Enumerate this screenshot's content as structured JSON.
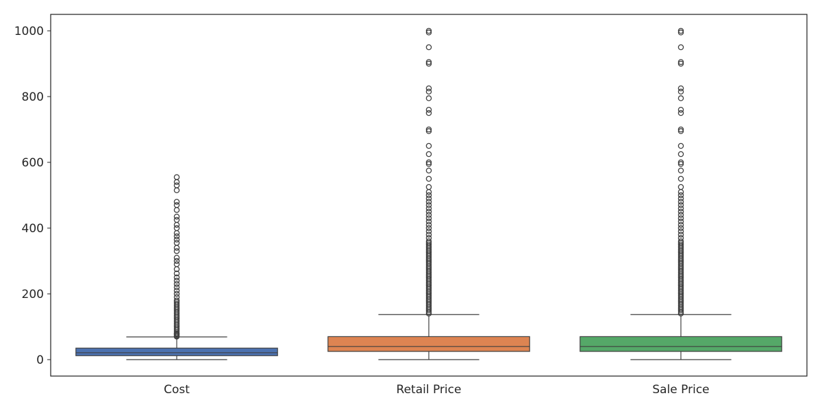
{
  "chart_data": {
    "type": "box",
    "title": "",
    "xlabel": "",
    "ylabel": "",
    "ylim": [
      -50,
      1050
    ],
    "y_ticks": [
      0,
      200,
      400,
      600,
      800,
      1000
    ],
    "y_tick_labels": [
      "0",
      "200",
      "400",
      "600",
      "800",
      "1000"
    ],
    "grid": false,
    "categories": [
      "Cost",
      "Retail Price",
      "Sale Price"
    ],
    "boxes": [
      {
        "category": "Cost",
        "color": "#4c72b0",
        "whisker_low": 0,
        "q1": 12,
        "median": 21,
        "q3": 35,
        "whisker_high": 69,
        "outliers": [
          70,
          72,
          75,
          78,
          80,
          85,
          90,
          95,
          100,
          105,
          110,
          115,
          120,
          125,
          130,
          135,
          140,
          145,
          150,
          155,
          160,
          165,
          170,
          175,
          180,
          190,
          200,
          210,
          220,
          230,
          240,
          250,
          262,
          275,
          290,
          300,
          310,
          330,
          340,
          355,
          365,
          375,
          385,
          400,
          410,
          425,
          435,
          455,
          470,
          480,
          515,
          530,
          540,
          555
        ]
      },
      {
        "category": "Retail Price",
        "color": "#dd8452",
        "whisker_low": 0,
        "q1": 25,
        "median": 40,
        "q3": 70,
        "whisker_high": 137,
        "outliers": [
          140,
          145,
          150,
          155,
          160,
          165,
          170,
          175,
          180,
          185,
          190,
          195,
          200,
          205,
          210,
          215,
          220,
          225,
          230,
          235,
          240,
          245,
          250,
          255,
          260,
          265,
          270,
          275,
          280,
          285,
          290,
          295,
          300,
          305,
          310,
          315,
          320,
          325,
          330,
          335,
          340,
          345,
          350,
          355,
          360,
          370,
          380,
          390,
          400,
          410,
          420,
          430,
          440,
          450,
          460,
          470,
          480,
          490,
          500,
          510,
          525,
          550,
          575,
          595,
          600,
          625,
          650,
          695,
          700,
          750,
          760,
          795,
          815,
          825,
          900,
          905,
          950,
          995,
          1000
        ]
      },
      {
        "category": "Sale Price",
        "color": "#55a868",
        "whisker_low": 0,
        "q1": 25,
        "median": 40,
        "q3": 70,
        "whisker_high": 137,
        "outliers": [
          140,
          145,
          150,
          155,
          160,
          165,
          170,
          175,
          180,
          185,
          190,
          195,
          200,
          205,
          210,
          215,
          220,
          225,
          230,
          235,
          240,
          245,
          250,
          255,
          260,
          265,
          270,
          275,
          280,
          285,
          290,
          295,
          300,
          305,
          310,
          315,
          320,
          325,
          330,
          335,
          340,
          345,
          350,
          355,
          360,
          370,
          380,
          390,
          400,
          410,
          420,
          430,
          440,
          450,
          460,
          470,
          480,
          490,
          500,
          510,
          525,
          550,
          575,
          595,
          600,
          625,
          650,
          695,
          700,
          750,
          760,
          795,
          815,
          825,
          900,
          905,
          950,
          995,
          1000
        ]
      }
    ]
  }
}
